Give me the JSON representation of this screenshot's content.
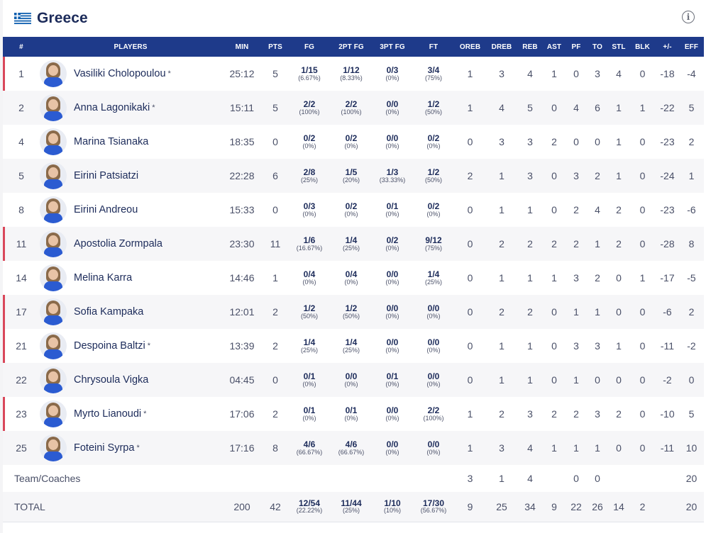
{
  "team": {
    "name": "Greece"
  },
  "columns": [
    "#",
    "PLAYERS",
    "MIN",
    "PTS",
    "FG",
    "2PT FG",
    "3PT FG",
    "FT",
    "OREB",
    "DREB",
    "REB",
    "AST",
    "PF",
    "TO",
    "STL",
    "BLK",
    "+/-",
    "EFF"
  ],
  "players": [
    {
      "no": "1",
      "name": "Vasiliki Cholopoulou",
      "star": "*",
      "min": "25:12",
      "pts": "5",
      "fg": "1/15",
      "fgp": "(6.67%)",
      "fg2": "1/12",
      "fg2p": "(8.33%)",
      "fg3": "0/3",
      "fg3p": "(0%)",
      "ft": "3/4",
      "ftp": "(75%)",
      "oreb": "1",
      "dreb": "3",
      "reb": "4",
      "ast": "1",
      "pf": "0",
      "to": "3",
      "stl": "4",
      "blk": "0",
      "pm": "-18",
      "eff": "-4",
      "bar": true
    },
    {
      "no": "2",
      "name": "Anna Lagonikaki",
      "star": "*",
      "min": "15:11",
      "pts": "5",
      "fg": "2/2",
      "fgp": "(100%)",
      "fg2": "2/2",
      "fg2p": "(100%)",
      "fg3": "0/0",
      "fg3p": "(0%)",
      "ft": "1/2",
      "ftp": "(50%)",
      "oreb": "1",
      "dreb": "4",
      "reb": "5",
      "ast": "0",
      "pf": "4",
      "to": "6",
      "stl": "1",
      "blk": "1",
      "pm": "-22",
      "eff": "5",
      "bar": false
    },
    {
      "no": "4",
      "name": "Marina Tsianaka",
      "star": "",
      "min": "18:35",
      "pts": "0",
      "fg": "0/2",
      "fgp": "(0%)",
      "fg2": "0/2",
      "fg2p": "(0%)",
      "fg3": "0/0",
      "fg3p": "(0%)",
      "ft": "0/2",
      "ftp": "(0%)",
      "oreb": "0",
      "dreb": "3",
      "reb": "3",
      "ast": "2",
      "pf": "0",
      "to": "0",
      "stl": "1",
      "blk": "0",
      "pm": "-23",
      "eff": "2",
      "bar": false
    },
    {
      "no": "5",
      "name": "Eirini Patsiatzi",
      "star": "",
      "min": "22:28",
      "pts": "6",
      "fg": "2/8",
      "fgp": "(25%)",
      "fg2": "1/5",
      "fg2p": "(20%)",
      "fg3": "1/3",
      "fg3p": "(33.33%)",
      "ft": "1/2",
      "ftp": "(50%)",
      "oreb": "2",
      "dreb": "1",
      "reb": "3",
      "ast": "0",
      "pf": "3",
      "to": "2",
      "stl": "1",
      "blk": "0",
      "pm": "-24",
      "eff": "1",
      "bar": false
    },
    {
      "no": "8",
      "name": "Eirini Andreou",
      "star": "",
      "min": "15:33",
      "pts": "0",
      "fg": "0/3",
      "fgp": "(0%)",
      "fg2": "0/2",
      "fg2p": "(0%)",
      "fg3": "0/1",
      "fg3p": "(0%)",
      "ft": "0/2",
      "ftp": "(0%)",
      "oreb": "0",
      "dreb": "1",
      "reb": "1",
      "ast": "0",
      "pf": "2",
      "to": "4",
      "stl": "2",
      "blk": "0",
      "pm": "-23",
      "eff": "-6",
      "bar": false
    },
    {
      "no": "11",
      "name": "Apostolia Zormpala",
      "star": "",
      "min": "23:30",
      "pts": "11",
      "fg": "1/6",
      "fgp": "(16.67%)",
      "fg2": "1/4",
      "fg2p": "(25%)",
      "fg3": "0/2",
      "fg3p": "(0%)",
      "ft": "9/12",
      "ftp": "(75%)",
      "oreb": "0",
      "dreb": "2",
      "reb": "2",
      "ast": "2",
      "pf": "2",
      "to": "1",
      "stl": "2",
      "blk": "0",
      "pm": "-28",
      "eff": "8",
      "bar": true
    },
    {
      "no": "14",
      "name": "Melina Karra",
      "star": "",
      "min": "14:46",
      "pts": "1",
      "fg": "0/4",
      "fgp": "(0%)",
      "fg2": "0/4",
      "fg2p": "(0%)",
      "fg3": "0/0",
      "fg3p": "(0%)",
      "ft": "1/4",
      "ftp": "(25%)",
      "oreb": "0",
      "dreb": "1",
      "reb": "1",
      "ast": "1",
      "pf": "3",
      "to": "2",
      "stl": "0",
      "blk": "1",
      "pm": "-17",
      "eff": "-5",
      "bar": false
    },
    {
      "no": "17",
      "name": "Sofia Kampaka",
      "star": "",
      "min": "12:01",
      "pts": "2",
      "fg": "1/2",
      "fgp": "(50%)",
      "fg2": "1/2",
      "fg2p": "(50%)",
      "fg3": "0/0",
      "fg3p": "(0%)",
      "ft": "0/0",
      "ftp": "(0%)",
      "oreb": "0",
      "dreb": "2",
      "reb": "2",
      "ast": "0",
      "pf": "1",
      "to": "1",
      "stl": "0",
      "blk": "0",
      "pm": "-6",
      "eff": "2",
      "bar": true
    },
    {
      "no": "21",
      "name": "Despoina Baltzi",
      "star": "*",
      "min": "13:39",
      "pts": "2",
      "fg": "1/4",
      "fgp": "(25%)",
      "fg2": "1/4",
      "fg2p": "(25%)",
      "fg3": "0/0",
      "fg3p": "(0%)",
      "ft": "0/0",
      "ftp": "(0%)",
      "oreb": "0",
      "dreb": "1",
      "reb": "1",
      "ast": "0",
      "pf": "3",
      "to": "3",
      "stl": "1",
      "blk": "0",
      "pm": "-11",
      "eff": "-2",
      "bar": true
    },
    {
      "no": "22",
      "name": "Chrysoula Vigka",
      "star": "",
      "min": "04:45",
      "pts": "0",
      "fg": "0/1",
      "fgp": "(0%)",
      "fg2": "0/0",
      "fg2p": "(0%)",
      "fg3": "0/1",
      "fg3p": "(0%)",
      "ft": "0/0",
      "ftp": "(0%)",
      "oreb": "0",
      "dreb": "1",
      "reb": "1",
      "ast": "0",
      "pf": "1",
      "to": "0",
      "stl": "0",
      "blk": "0",
      "pm": "-2",
      "eff": "0",
      "bar": false
    },
    {
      "no": "23",
      "name": "Myrto Lianoudi",
      "star": "*",
      "min": "17:06",
      "pts": "2",
      "fg": "0/1",
      "fgp": "(0%)",
      "fg2": "0/1",
      "fg2p": "(0%)",
      "fg3": "0/0",
      "fg3p": "(0%)",
      "ft": "2/2",
      "ftp": "(100%)",
      "oreb": "1",
      "dreb": "2",
      "reb": "3",
      "ast": "2",
      "pf": "2",
      "to": "3",
      "stl": "2",
      "blk": "0",
      "pm": "-10",
      "eff": "5",
      "bar": true
    },
    {
      "no": "25",
      "name": "Foteini Syrpa",
      "star": "*",
      "min": "17:16",
      "pts": "8",
      "fg": "4/6",
      "fgp": "(66.67%)",
      "fg2": "4/6",
      "fg2p": "(66.67%)",
      "fg3": "0/0",
      "fg3p": "(0%)",
      "ft": "0/0",
      "ftp": "(0%)",
      "oreb": "1",
      "dreb": "3",
      "reb": "4",
      "ast": "1",
      "pf": "1",
      "to": "1",
      "stl": "0",
      "blk": "0",
      "pm": "-11",
      "eff": "10",
      "bar": false
    }
  ],
  "team_row": {
    "label": "Team/Coaches",
    "oreb": "3",
    "dreb": "1",
    "reb": "4",
    "ast": "",
    "pf": "0",
    "to": "0",
    "stl": "",
    "blk": "",
    "pm": "",
    "eff": "20"
  },
  "total_row": {
    "label": "TOTAL",
    "min": "200",
    "pts": "42",
    "fg": "12/54",
    "fgp": "(22.22%)",
    "fg2": "11/44",
    "fg2p": "(25%)",
    "fg3": "1/10",
    "fg3p": "(10%)",
    "ft": "17/30",
    "ftp": "(56.67%)",
    "oreb": "9",
    "dreb": "25",
    "reb": "34",
    "ast": "9",
    "pf": "22",
    "to": "26",
    "stl": "14",
    "blk": "2",
    "pm": "",
    "eff": "20"
  },
  "colors": {
    "header_bg": "#1e3a8a",
    "accent_bar": "#d9475a",
    "title": "#1c2b5a"
  }
}
